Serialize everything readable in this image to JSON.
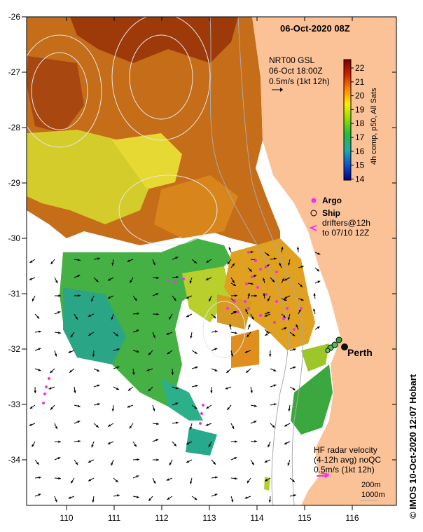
{
  "title": "06-Oct-2020 08Z",
  "gsl": {
    "line1": "NRT00 GSL",
    "line2": "06-Oct 18:00Z",
    "line3": "0.5m/s (1kt 12h)"
  },
  "colorbar": {
    "label": "4h comp, p50, All Sats",
    "ticks": [
      "22",
      "21",
      "20",
      "19",
      "18",
      "17",
      "16",
      "15",
      "14"
    ]
  },
  "legend": {
    "argo": "Argo",
    "ship": "Ship",
    "drifters1": "drifters@12h",
    "drifters2": "to 07/10 12Z"
  },
  "city": "Perth",
  "radar": {
    "line1": "HF radar velocity",
    "line2": "(4-12h avg) noQC",
    "line3": "0.5m/s (1kt 12h)"
  },
  "isobaths": {
    "a": "200m",
    "b": "1000m"
  },
  "credit": "© IMOS 10-Oct-2020 12:07 Hobart",
  "axes": {
    "x_ticks": [
      "110",
      "111",
      "112",
      "113",
      "114",
      "115",
      "116"
    ],
    "y_ticks": [
      "-26",
      "-27",
      "-28",
      "-29",
      "-30",
      "-31",
      "-32",
      "-33",
      "-34"
    ]
  },
  "colors": {
    "land": "#fbc197",
    "ocean_warm": "#c96a17",
    "ocean_green": "#3fae45",
    "argo": "#ee33ee"
  }
}
